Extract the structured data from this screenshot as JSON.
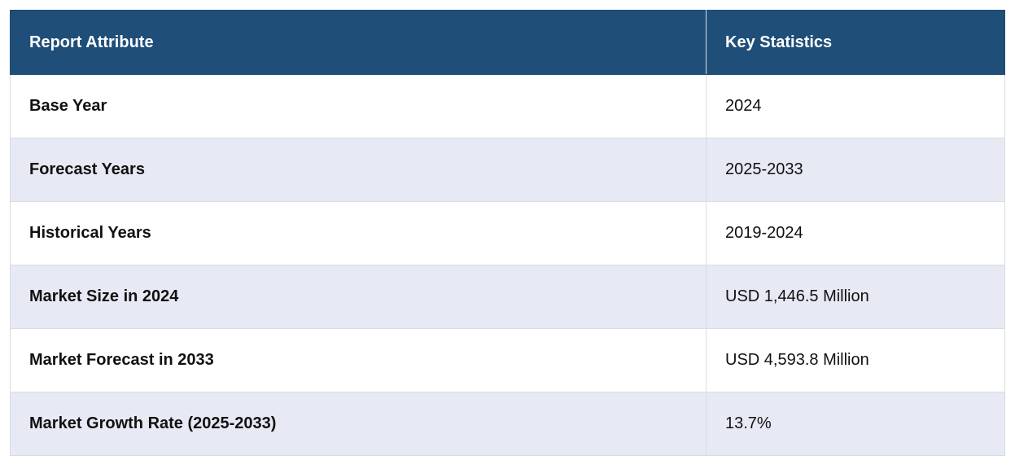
{
  "table": {
    "headers": {
      "attribute": "Report Attribute",
      "statistic": "Key Statistics"
    },
    "rows": [
      {
        "attribute": "Base Year",
        "value": "2024"
      },
      {
        "attribute": "Forecast Years",
        "value": "2025-2033"
      },
      {
        "attribute": "Historical Years",
        "value": "2019-2024"
      },
      {
        "attribute": "Market Size in 2024",
        "value": "USD 1,446.5 Million"
      },
      {
        "attribute": "Market Forecast in 2033",
        "value": "USD 4,593.8 Million"
      },
      {
        "attribute": "Market Growth Rate (2025-2033)",
        "value": "13.7%"
      }
    ]
  },
  "colors": {
    "header_bg": "#1f4e79",
    "header_text": "#ffffff",
    "row_alt_bg": "#e7e9f4",
    "row_bg": "#ffffff"
  }
}
